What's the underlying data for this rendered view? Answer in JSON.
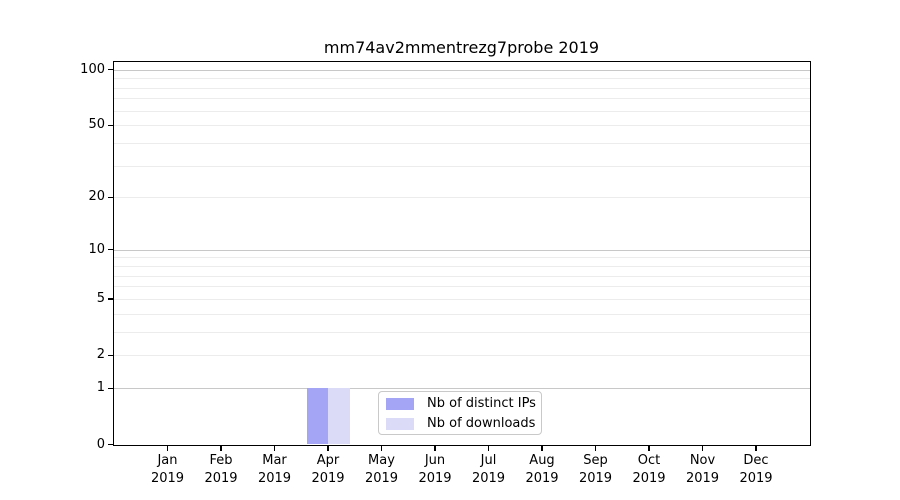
{
  "figure": {
    "background": "#ffffff"
  },
  "chart_data": {
    "type": "bar",
    "title": "mm74av2mmentrezg7probe 2019",
    "x_months": [
      "Jan",
      "Feb",
      "Mar",
      "Apr",
      "May",
      "Jun",
      "Jul",
      "Aug",
      "Sep",
      "Oct",
      "Nov",
      "Dec"
    ],
    "x_year": "2019",
    "series": [
      {
        "name": "Nb of distinct IPs",
        "color": "#a5a5f5",
        "values": [
          0,
          0,
          0,
          1,
          0,
          0,
          0,
          0,
          0,
          0,
          0,
          0
        ]
      },
      {
        "name": "Nb of downloads",
        "color": "#dbdbf8",
        "values": [
          0,
          0,
          0,
          1,
          0,
          0,
          0,
          0,
          0,
          0,
          0,
          0
        ]
      }
    ],
    "y_scale": "log1p",
    "ylim": [
      0,
      110
    ],
    "y_ticks": [
      0,
      1,
      2,
      5,
      10,
      20,
      50,
      100
    ],
    "y_gridlines_major": [
      1,
      10,
      100
    ],
    "y_gridlines_minor": [
      2,
      3,
      4,
      5,
      6,
      7,
      8,
      9,
      20,
      30,
      40,
      50,
      60,
      70,
      80,
      90
    ],
    "grid": "horizontal",
    "legend_position": "lower center",
    "colors": {
      "grid_major": "#c8c8c8",
      "grid_minor": "#ececec",
      "spine": "#000000",
      "text": "#000000"
    }
  }
}
